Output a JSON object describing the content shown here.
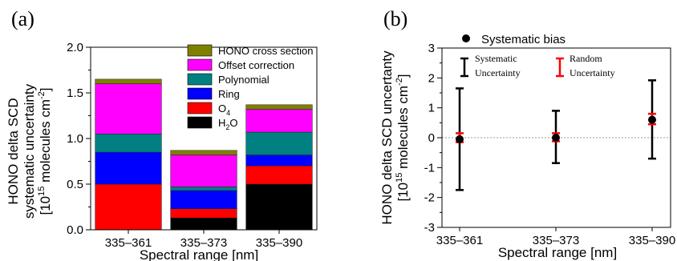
{
  "colors": {
    "HONO cross section": "#7f7f00",
    "Offset correction": "#ff00ff",
    "Polynomial": "#008080",
    "Ring": "#0000ff",
    "O4": "#ff0000",
    "H2O": "#000000",
    "systematic_bar": "#000000",
    "random_bar": "#ff0000",
    "zero_line": "#9a9a9a"
  },
  "chart_data": [
    {
      "type": "bar",
      "stacked": true,
      "panel_label": "(a)",
      "xlabel": "Spectral range [nm]",
      "ylabel": {
        "line1": "HONO delta SCD",
        "line2": "systematic uncertainty",
        "line3_pre": "[10",
        "line3_sup": "15",
        "line3_mid": " molecules cm",
        "line3_sup2": "-2",
        "line3_post": "]"
      },
      "categories": [
        "335–361",
        "335–373",
        "335–390"
      ],
      "ylim": [
        0,
        2.0
      ],
      "yticks": [
        "0.0",
        "0.5",
        "1.0",
        "1.5",
        "2.0"
      ],
      "legend_position": "top-right",
      "legend_labels": {
        "hono": "HONO cross section",
        "offset": "Offset correction",
        "poly": "Polynomial",
        "ring": "Ring",
        "o4_base": "O",
        "o4_sub": "4",
        "h2o_base": "H",
        "h2o_sub": "2",
        "h2o_end": "O"
      },
      "series": [
        {
          "name": "H2O",
          "values": [
            0,
            0.13,
            0.5
          ]
        },
        {
          "name": "O4",
          "values": [
            0.5,
            0.1,
            0.2
          ]
        },
        {
          "name": "Ring",
          "values": [
            0.35,
            0.2,
            0.12
          ]
        },
        {
          "name": "Polynomial",
          "values": [
            0.2,
            0.04,
            0.25
          ]
        },
        {
          "name": "Offset correction",
          "values": [
            0.55,
            0.35,
            0.25
          ]
        },
        {
          "name": "HONO cross section",
          "values": [
            0.05,
            0.05,
            0.05
          ]
        }
      ]
    },
    {
      "type": "scatter",
      "panel_label": "(b)",
      "xlabel": "Spectral range [nm]",
      "ylabel": {
        "line1": "HONO delta SCD uncertanty",
        "line2_pre": "[10",
        "line2_sup": "15",
        "line2_mid": " molecules cm",
        "line2_sup2": "-2",
        "line2_post": "]"
      },
      "categories": [
        "335–361",
        "335–373",
        "335–390"
      ],
      "ylim": [
        -3,
        3
      ],
      "yticks": [
        "-3",
        "-2",
        "-1",
        "0",
        "1",
        "2",
        "3"
      ],
      "legend_position": "top",
      "legend_labels": {
        "bias": "Systematic bias",
        "sys_line1": "Systematic",
        "sys_line2": "Uncertainty",
        "rand_line1": "Random",
        "rand_line2": "Uncertainty"
      },
      "series": [
        {
          "name": "Systematic bias",
          "values": [
            -0.05,
            0.0,
            0.6
          ]
        },
        {
          "name": "Systematic",
          "low": [
            -1.75,
            -0.85,
            -0.7
          ],
          "high": [
            1.65,
            0.9,
            1.92
          ]
        },
        {
          "name": "Random",
          "low": [
            -0.15,
            -0.12,
            0.45
          ],
          "high": [
            0.15,
            0.15,
            0.8
          ]
        }
      ]
    }
  ]
}
